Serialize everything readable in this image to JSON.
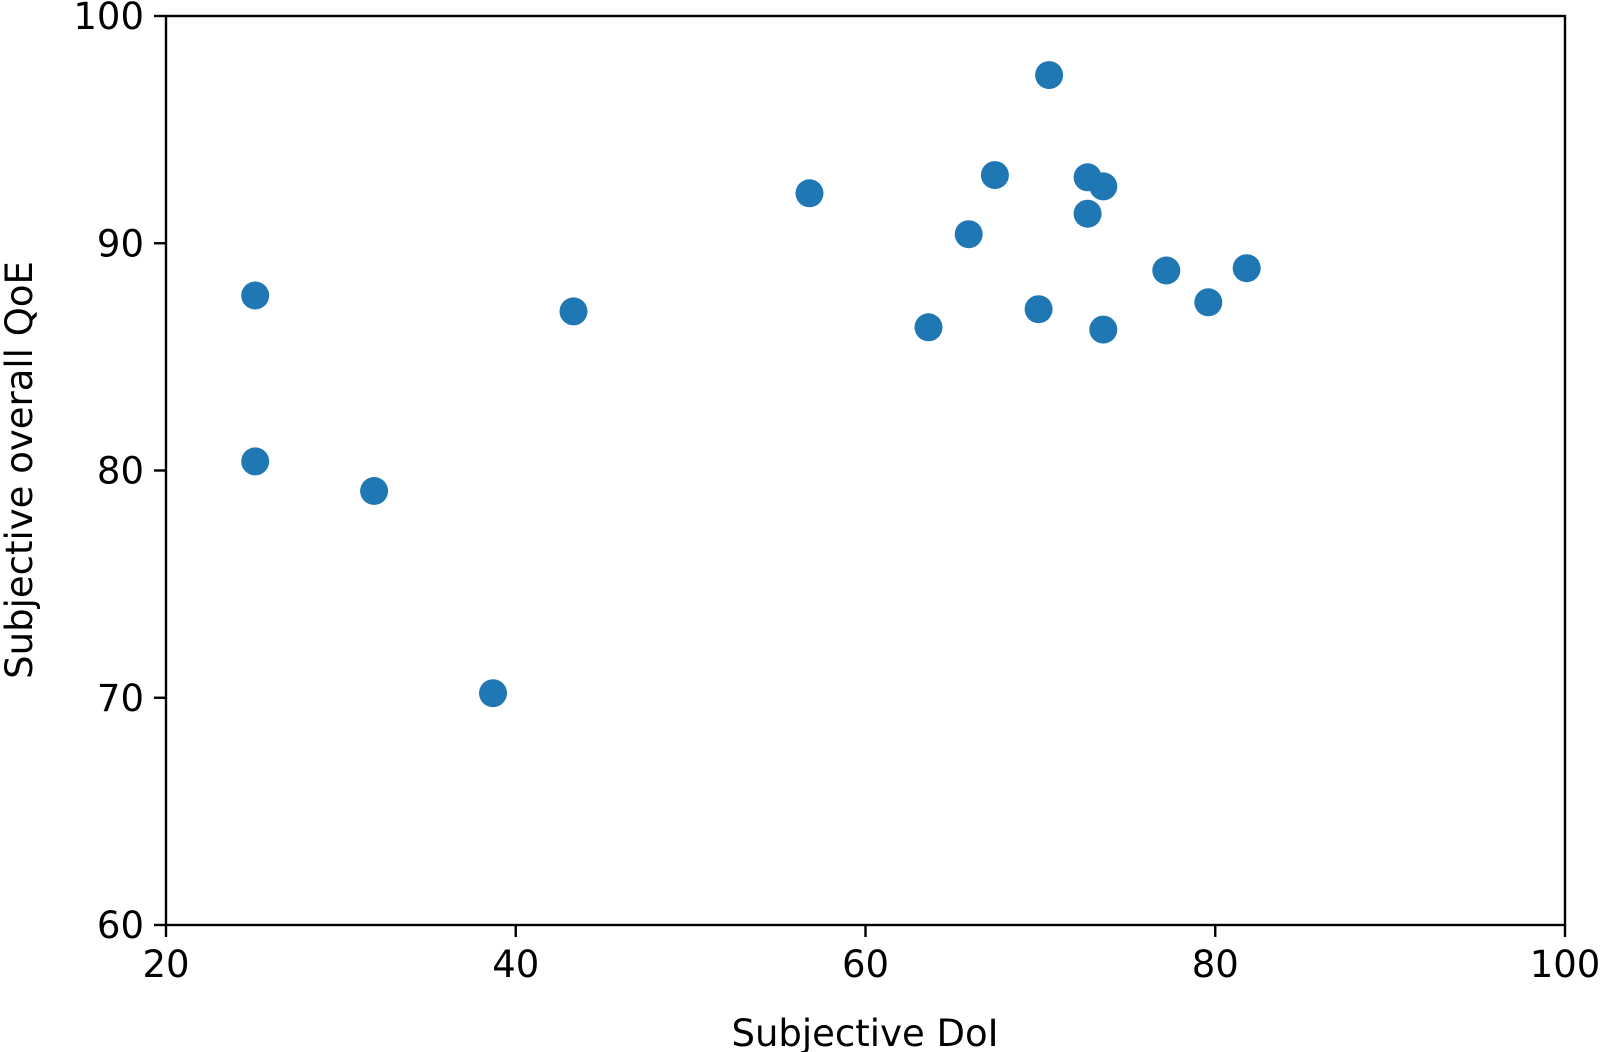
{
  "chart_data": {
    "type": "scatter",
    "title": "",
    "xlabel": "Subjective DoI",
    "ylabel": "Subjective overall QoE",
    "xlim": [
      20,
      100
    ],
    "ylim": [
      60,
      100
    ],
    "xticks": [
      20,
      40,
      60,
      80,
      100
    ],
    "yticks": [
      60,
      70,
      80,
      90,
      100
    ],
    "grid": false,
    "marker_color": "#1f77b4",
    "points": [
      {
        "x": 25.1,
        "y": 87.7
      },
      {
        "x": 25.1,
        "y": 80.4
      },
      {
        "x": 31.9,
        "y": 79.1
      },
      {
        "x": 38.7,
        "y": 70.2
      },
      {
        "x": 43.3,
        "y": 87.0
      },
      {
        "x": 56.8,
        "y": 92.2
      },
      {
        "x": 63.6,
        "y": 86.3
      },
      {
        "x": 65.9,
        "y": 90.4
      },
      {
        "x": 67.4,
        "y": 93.0
      },
      {
        "x": 69.9,
        "y": 87.1
      },
      {
        "x": 70.5,
        "y": 97.4
      },
      {
        "x": 72.7,
        "y": 92.9
      },
      {
        "x": 72.7,
        "y": 91.3
      },
      {
        "x": 73.6,
        "y": 92.5
      },
      {
        "x": 73.6,
        "y": 86.2
      },
      {
        "x": 77.2,
        "y": 88.8
      },
      {
        "x": 79.6,
        "y": 87.4
      },
      {
        "x": 81.8,
        "y": 88.9
      }
    ]
  }
}
